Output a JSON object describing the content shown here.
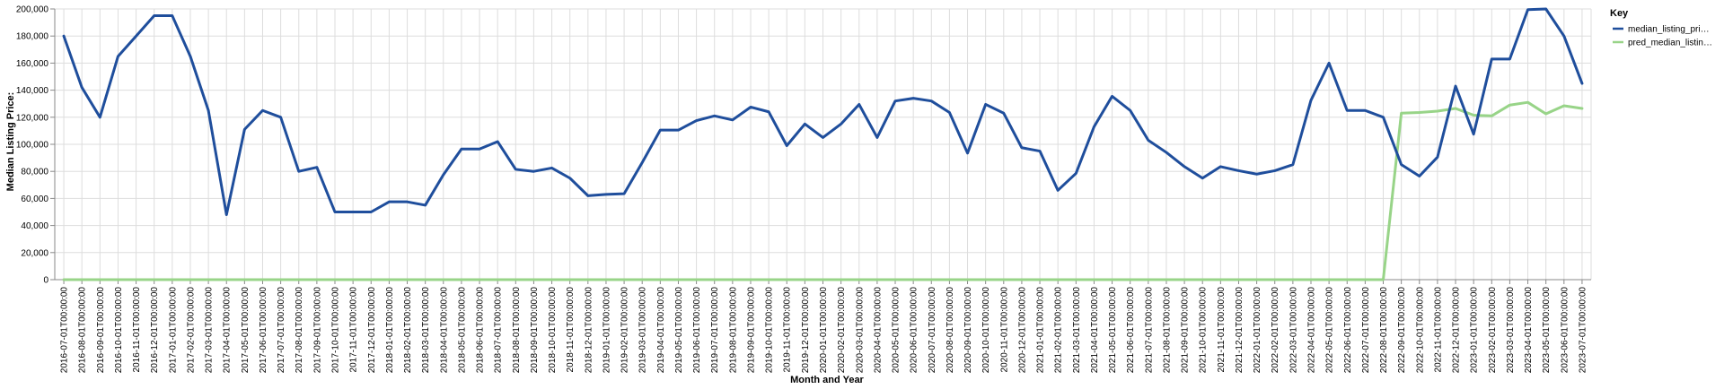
{
  "chart_data": {
    "type": "line",
    "xlabel": "Month and Year",
    "ylabel": "Median Listing Price:",
    "ylim": [
      0,
      200000
    ],
    "yticks": [
      0,
      20000,
      40000,
      60000,
      80000,
      100000,
      120000,
      140000,
      160000,
      180000,
      200000
    ],
    "ytick_labels": [
      "0",
      "20,000",
      "40,000",
      "60,000",
      "80,000",
      "100,000",
      "120,000",
      "140,000",
      "160,000",
      "180,000",
      "200,000"
    ],
    "grid": true,
    "legend": {
      "title": "Key",
      "placement": "top-right"
    },
    "x": [
      "2016-07-01T00:00:00",
      "2016-08-01T00:00:00",
      "2016-09-01T00:00:00",
      "2016-10-01T00:00:00",
      "2016-11-01T00:00:00",
      "2016-12-01T00:00:00",
      "2017-01-01T00:00:00",
      "2017-02-01T00:00:00",
      "2017-03-01T00:00:00",
      "2017-04-01T00:00:00",
      "2017-05-01T00:00:00",
      "2017-06-01T00:00:00",
      "2017-07-01T00:00:00",
      "2017-08-01T00:00:00",
      "2017-09-01T00:00:00",
      "2017-10-01T00:00:00",
      "2017-11-01T00:00:00",
      "2017-12-01T00:00:00",
      "2018-01-01T00:00:00",
      "2018-02-01T00:00:00",
      "2018-03-01T00:00:00",
      "2018-04-01T00:00:00",
      "2018-05-01T00:00:00",
      "2018-06-01T00:00:00",
      "2018-07-01T00:00:00",
      "2018-08-01T00:00:00",
      "2018-09-01T00:00:00",
      "2018-10-01T00:00:00",
      "2018-11-01T00:00:00",
      "2018-12-01T00:00:00",
      "2019-01-01T00:00:00",
      "2019-02-01T00:00:00",
      "2019-03-01T00:00:00",
      "2019-04-01T00:00:00",
      "2019-05-01T00:00:00",
      "2019-06-01T00:00:00",
      "2019-07-01T00:00:00",
      "2019-08-01T00:00:00",
      "2019-09-01T00:00:00",
      "2019-10-01T00:00:00",
      "2019-11-01T00:00:00",
      "2019-12-01T00:00:00",
      "2020-01-01T00:00:00",
      "2020-02-01T00:00:00",
      "2020-03-01T00:00:00",
      "2020-04-01T00:00:00",
      "2020-05-01T00:00:00",
      "2020-06-01T00:00:00",
      "2020-07-01T00:00:00",
      "2020-08-01T00:00:00",
      "2020-09-01T00:00:00",
      "2020-10-01T00:00:00",
      "2020-11-01T00:00:00",
      "2020-12-01T00:00:00",
      "2021-01-01T00:00:00",
      "2021-02-01T00:00:00",
      "2021-03-01T00:00:00",
      "2021-04-01T00:00:00",
      "2021-05-01T00:00:00",
      "2021-06-01T00:00:00",
      "2021-07-01T00:00:00",
      "2021-08-01T00:00:00",
      "2021-09-01T00:00:00",
      "2021-10-01T00:00:00",
      "2021-11-01T00:00:00",
      "2021-12-01T00:00:00",
      "2022-01-01T00:00:00",
      "2022-02-01T00:00:00",
      "2022-03-01T00:00:00",
      "2022-04-01T00:00:00",
      "2022-05-01T00:00:00",
      "2022-06-01T00:00:00",
      "2022-07-01T00:00:00",
      "2022-08-01T00:00:00",
      "2022-09-01T00:00:00",
      "2022-10-01T00:00:00",
      "2022-11-01T00:00:00",
      "2022-12-01T00:00:00",
      "2023-01-01T00:00:00",
      "2023-02-01T00:00:00",
      "2023-03-01T00:00:00",
      "2023-04-01T00:00:00",
      "2023-05-01T00:00:00",
      "2023-06-01T00:00:00",
      "2023-07-01T00:00:00"
    ],
    "series": [
      {
        "name": "median_listing_pri…",
        "color": "#1f4e9c",
        "values": [
          180000,
          142000,
          120000,
          165000,
          180000,
          195000,
          195000,
          165000,
          125000,
          48000,
          111000,
          125000,
          120000,
          80000,
          83000,
          50000,
          50000,
          50000,
          57500,
          57500,
          55000,
          77500,
          96500,
          96500,
          102000,
          81500,
          80000,
          82500,
          75000,
          62000,
          63000,
          63500,
          86500,
          110500,
          110500,
          117500,
          121000,
          118000,
          127500,
          124000,
          99000,
          115000,
          105000,
          115000,
          129500,
          105000,
          132000,
          134000,
          132000,
          123500,
          93500,
          129500,
          123000,
          97500,
          95000,
          66000,
          78500,
          113000,
          135500,
          125000,
          103000,
          94000,
          83500,
          75000,
          83500,
          80500,
          78000,
          80500,
          85000,
          132500,
          160000,
          125000,
          125000,
          120000,
          85000,
          76500,
          90500,
          143000,
          107500,
          163000,
          163000,
          199500,
          200000,
          180000,
          145000
        ]
      },
      {
        "name": "pred_median_listin…",
        "color": "#98d488",
        "values": [
          0,
          0,
          0,
          0,
          0,
          0,
          0,
          0,
          0,
          0,
          0,
          0,
          0,
          0,
          0,
          0,
          0,
          0,
          0,
          0,
          0,
          0,
          0,
          0,
          0,
          0,
          0,
          0,
          0,
          0,
          0,
          0,
          0,
          0,
          0,
          0,
          0,
          0,
          0,
          0,
          0,
          0,
          0,
          0,
          0,
          0,
          0,
          0,
          0,
          0,
          0,
          0,
          0,
          0,
          0,
          0,
          0,
          0,
          0,
          0,
          0,
          0,
          0,
          0,
          0,
          0,
          0,
          0,
          0,
          0,
          0,
          0,
          0,
          0,
          123000,
          123500,
          124500,
          126500,
          121500,
          121000,
          129000,
          131000,
          122500,
          128500,
          126500
        ]
      }
    ]
  }
}
